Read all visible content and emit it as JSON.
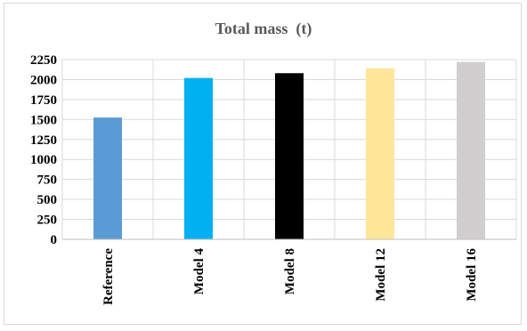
{
  "chart_data": {
    "type": "bar",
    "title": "Total mass  (t)",
    "xlabel": "",
    "ylabel": "",
    "categories": [
      "Reference",
      "Model 4",
      "Model 8",
      "Model 12",
      "Model 16"
    ],
    "values": [
      1525,
      2020,
      2080,
      2140,
      2220
    ],
    "colors": [
      "#5b9bd5",
      "#00b0f0",
      "#000000",
      "#ffe699",
      "#d0cece"
    ],
    "ylim": [
      0,
      2250
    ],
    "yticks": [
      0,
      250,
      500,
      750,
      1000,
      1250,
      1500,
      1750,
      2000,
      2250
    ],
    "grid": true,
    "legend": "none"
  }
}
